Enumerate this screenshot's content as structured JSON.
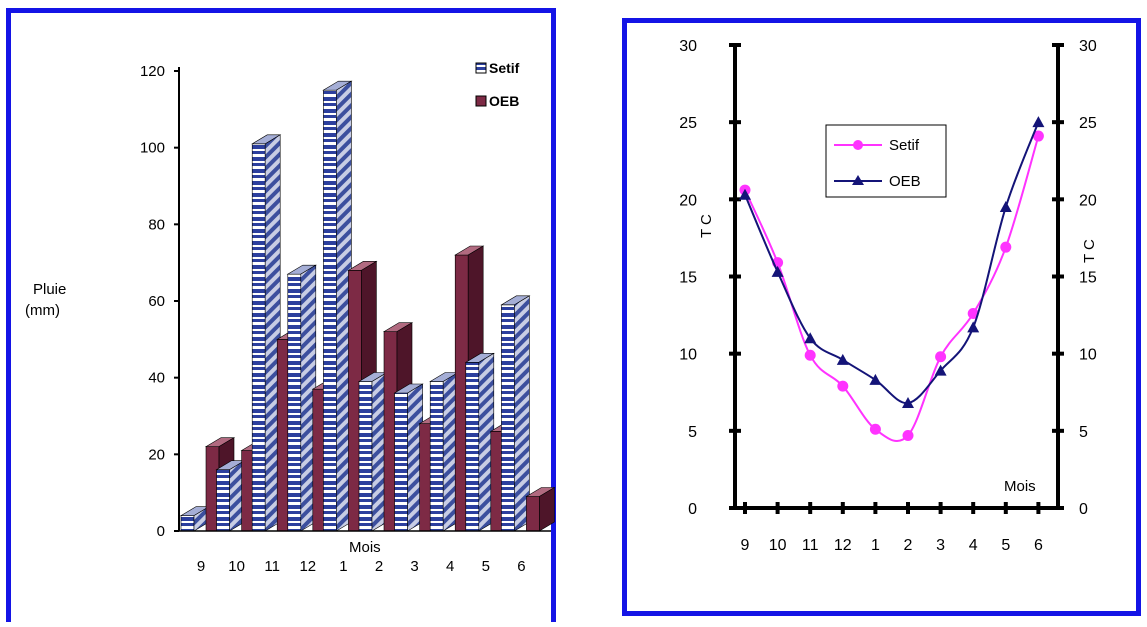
{
  "chart_data": [
    {
      "type": "bar",
      "categories": [
        "9",
        "10",
        "11",
        "12",
        "1",
        "2",
        "3",
        "4",
        "5",
        "6"
      ],
      "series": [
        {
          "name": "Setif",
          "values": [
            4,
            16,
            101,
            67,
            115,
            39,
            36,
            39,
            44,
            59
          ]
        },
        {
          "name": "OEB",
          "values": [
            22,
            21,
            50,
            37,
            68,
            52,
            28,
            72,
            26,
            9
          ]
        }
      ],
      "title": "",
      "xlabel": "Mois",
      "ylabel": "Pluie (mm)",
      "ylabel_lines": [
        "Pluie",
        "(mm)"
      ],
      "ylim": [
        0,
        120
      ],
      "yticks": [
        "0",
        "20",
        "40",
        "60",
        "80",
        "100",
        "120"
      ],
      "grid": false,
      "legend": "top-right",
      "colors": {
        "Setif": "#2c3f9e",
        "OEB": "#7d2a45",
        "frame": "#1414e6"
      }
    },
    {
      "type": "line",
      "categories": [
        "9",
        "10",
        "11",
        "12",
        "1",
        "2",
        "3",
        "4",
        "5",
        "6"
      ],
      "series": [
        {
          "name": "Setif",
          "values": [
            20.6,
            15.9,
            9.9,
            7.9,
            5.1,
            4.7,
            9.8,
            12.6,
            16.9,
            24.1
          ]
        },
        {
          "name": "OEB",
          "values": [
            20.3,
            15.3,
            11.0,
            9.6,
            8.3,
            6.8,
            8.9,
            11.7,
            19.5,
            25.0
          ]
        }
      ],
      "title": "",
      "xlabel": "Mois",
      "ylabel": "T C",
      "ylabel_right": "T C",
      "ylim": [
        0,
        30
      ],
      "yticks": [
        "0",
        "5",
        "10",
        "15",
        "20",
        "25",
        "30"
      ],
      "grid": false,
      "legend": "upper-left",
      "colors": {
        "Setif": "#ff33ff",
        "OEB": "#141478",
        "frame": "#1414e6"
      }
    }
  ]
}
